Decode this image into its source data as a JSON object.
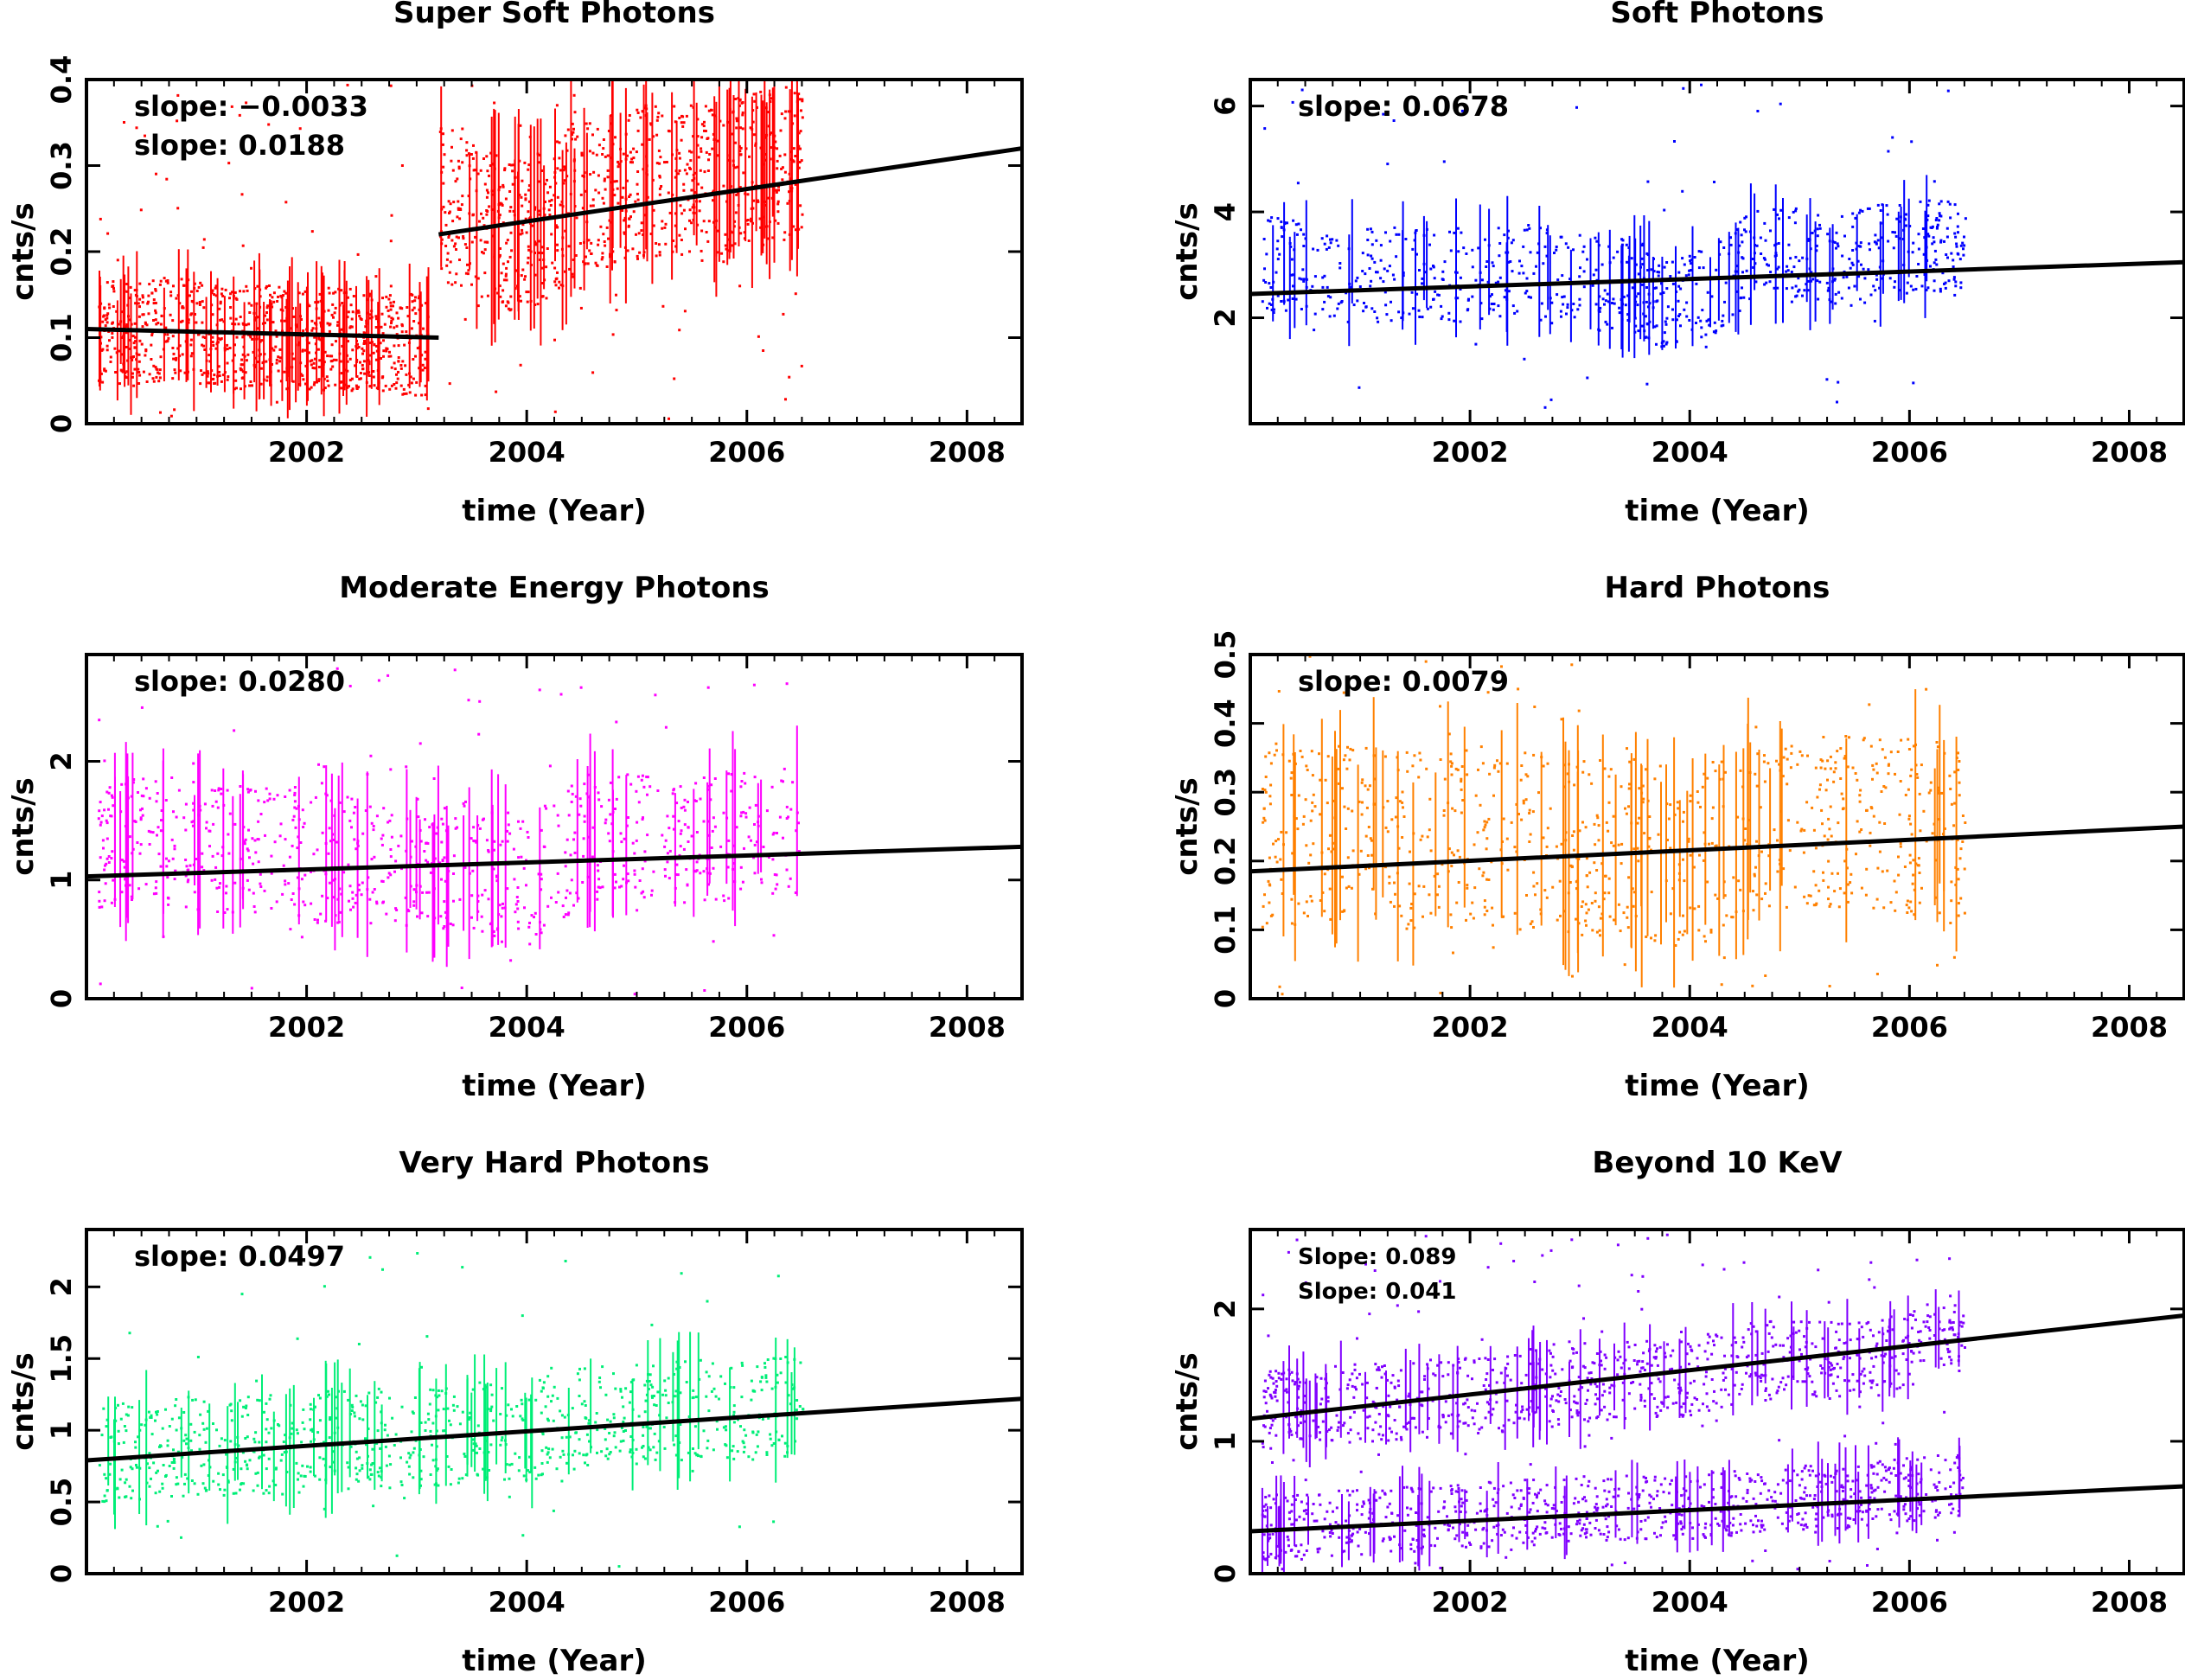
{
  "chart_data": [
    {
      "type": "scatter",
      "title": "Super Soft Photons",
      "xlabel": "time (Year)",
      "ylabel": "cnts/s",
      "xlim": [
        2000.0,
        2008.5
      ],
      "ylim": [
        0,
        0.4
      ],
      "xticks": [
        2002,
        2004,
        2006,
        2008
      ],
      "xtick_labels": [
        "2002",
        "2004",
        "2006",
        "2008"
      ],
      "yticks": [
        0,
        0.1,
        0.2,
        0.3,
        0.4
      ],
      "ytick_labels": [
        "0",
        "0.1",
        "0.2",
        "0.3",
        "0.4"
      ],
      "color": "#ff0000",
      "annotations": [
        "slope:  −0.0033",
        "slope:  0.0188"
      ],
      "series": [
        {
          "x": [
            2000.1,
            2000.4,
            2000.7,
            2001.0,
            2001.3,
            2001.6,
            2001.9,
            2002.2,
            2002.5,
            2002.8,
            2003.1
          ],
          "y": [
            0.11,
            0.105,
            0.112,
            0.108,
            0.1,
            0.103,
            0.099,
            0.101,
            0.097,
            0.095,
            0.094
          ],
          "spread": 0.06
        },
        {
          "x": [
            2003.2,
            2003.5,
            2003.8,
            2004.1,
            2004.4,
            2004.7,
            2005.0,
            2005.3,
            2005.6,
            2005.9,
            2006.2,
            2006.5
          ],
          "y": [
            0.26,
            0.24,
            0.22,
            0.23,
            0.26,
            0.27,
            0.28,
            0.29,
            0.28,
            0.29,
            0.3,
            0.31
          ],
          "spread": 0.09
        }
      ],
      "fit_lines": [
        {
          "x": [
            2000.0,
            2003.2
          ],
          "y": [
            0.11,
            0.1
          ]
        },
        {
          "x": [
            2003.2,
            2008.5
          ],
          "y": [
            0.22,
            0.32
          ]
        }
      ]
    },
    {
      "type": "scatter",
      "title": "Soft Photons",
      "xlabel": "time (Year)",
      "ylabel": "cnts/s",
      "xlim": [
        2000.0,
        2008.5
      ],
      "ylim": [
        0,
        6.5
      ],
      "xticks": [
        2002,
        2004,
        2006,
        2008
      ],
      "xtick_labels": [
        "2002",
        "2004",
        "2006",
        "2008"
      ],
      "yticks": [
        2,
        4,
        6
      ],
      "ytick_labels": [
        "2",
        "4",
        "6"
      ],
      "color": "#0000ff",
      "annotations": [
        "slope:  0.0678"
      ],
      "series": [
        {
          "x": [
            2000.1,
            2000.5,
            2001.0,
            2001.5,
            2002.0,
            2002.5,
            2003.0,
            2003.5,
            2003.8,
            2004.2,
            2004.6,
            2005.0,
            2005.4,
            2005.8,
            2006.2,
            2006.5
          ],
          "y": [
            3.1,
            2.9,
            2.8,
            2.9,
            2.8,
            2.9,
            2.7,
            2.6,
            2.3,
            2.6,
            3.3,
            3.2,
            3.1,
            3.3,
            3.4,
            3.2
          ],
          "spread": 0.9
        }
      ],
      "fit_lines": [
        {
          "x": [
            2000.0,
            2008.5
          ],
          "y": [
            2.45,
            3.05
          ]
        }
      ]
    },
    {
      "type": "scatter",
      "title": "Moderate Energy Photons",
      "xlabel": "time (Year)",
      "ylabel": "cnts/s",
      "xlim": [
        2000.0,
        2008.5
      ],
      "ylim": [
        0,
        2.9
      ],
      "xticks": [
        2002,
        2004,
        2006,
        2008
      ],
      "xtick_labels": [
        "2002",
        "2004",
        "2006",
        "2008"
      ],
      "yticks": [
        0,
        1,
        2
      ],
      "ytick_labels": [
        "0",
        "1",
        "2"
      ],
      "color": "#ff00ff",
      "annotations": [
        "slope:  0.0280"
      ],
      "series": [
        {
          "x": [
            2000.1,
            2000.5,
            2001.0,
            2001.5,
            2002.0,
            2002.5,
            2003.0,
            2003.5,
            2004.0,
            2004.5,
            2005.0,
            2005.5,
            2006.0,
            2006.5
          ],
          "y": [
            1.3,
            1.35,
            1.3,
            1.25,
            1.2,
            1.2,
            1.15,
            1.1,
            1.0,
            1.35,
            1.4,
            1.35,
            1.4,
            1.45
          ],
          "spread": 0.55
        }
      ],
      "fit_lines": [
        {
          "x": [
            2000.0,
            2008.5
          ],
          "y": [
            1.03,
            1.28
          ]
        }
      ]
    },
    {
      "type": "scatter",
      "title": "Hard Photons",
      "xlabel": "time (Year)",
      "ylabel": "cnts/s",
      "xlim": [
        2000.0,
        2008.5
      ],
      "ylim": [
        0,
        0.5
      ],
      "xticks": [
        2002,
        2004,
        2006,
        2008
      ],
      "xtick_labels": [
        "2002",
        "2004",
        "2006",
        "2008"
      ],
      "yticks": [
        0,
        0.1,
        0.2,
        0.3,
        0.4,
        0.5
      ],
      "ytick_labels": [
        "0",
        "0.1",
        "0.2",
        "0.3",
        "0.4",
        "0.5"
      ],
      "color": "#ff8000",
      "annotations": [
        "slope:  0.0079"
      ],
      "series": [
        {
          "x": [
            2000.1,
            2000.5,
            2001.0,
            2001.5,
            2002.0,
            2002.5,
            2003.0,
            2003.5,
            2004.0,
            2004.5,
            2005.0,
            2005.5,
            2006.0,
            2006.5
          ],
          "y": [
            0.23,
            0.24,
            0.24,
            0.23,
            0.24,
            0.23,
            0.22,
            0.22,
            0.2,
            0.25,
            0.26,
            0.26,
            0.25,
            0.25
          ],
          "spread": 0.13
        }
      ],
      "fit_lines": [
        {
          "x": [
            2000.0,
            2008.5
          ],
          "y": [
            0.185,
            0.25
          ]
        }
      ]
    },
    {
      "type": "scatter",
      "title": "Very Hard  Photons",
      "xlabel": "time (Year)",
      "ylabel": "cnts/s",
      "xlim": [
        2000.0,
        2008.5
      ],
      "ylim": [
        0,
        2.4
      ],
      "xticks": [
        2002,
        2004,
        2006,
        2008
      ],
      "xtick_labels": [
        "2002",
        "2004",
        "2006",
        "2008"
      ],
      "yticks": [
        0,
        0.5,
        1,
        1.5,
        2
      ],
      "ytick_labels": [
        "0",
        "0.5",
        "1",
        "1.5",
        "2"
      ],
      "color": "#00ee77",
      "annotations": [
        "slope:  0.0497"
      ],
      "series": [
        {
          "x": [
            2000.1,
            2000.5,
            2001.0,
            2001.5,
            2002.0,
            2002.5,
            2003.0,
            2003.5,
            2004.0,
            2004.5,
            2005.0,
            2005.5,
            2006.0,
            2006.5
          ],
          "y": [
            0.85,
            0.88,
            0.9,
            0.9,
            0.93,
            0.95,
            0.95,
            1.0,
            1.0,
            1.1,
            1.12,
            1.15,
            1.15,
            1.18
          ],
          "spread": 0.35
        }
      ],
      "fit_lines": [
        {
          "x": [
            2000.0,
            2008.5
          ],
          "y": [
            0.79,
            1.22
          ]
        }
      ]
    },
    {
      "type": "scatter",
      "title": "Beyond 10 KeV",
      "xlabel": "time (Year)",
      "ylabel": "cnts/s",
      "xlim": [
        2000.0,
        2008.5
      ],
      "ylim": [
        0,
        2.6
      ],
      "xticks": [
        2002,
        2004,
        2006,
        2008
      ],
      "xtick_labels": [
        "2002",
        "2004",
        "2006",
        "2008"
      ],
      "yticks": [
        0,
        1,
        2
      ],
      "ytick_labels": [
        "0",
        "1",
        "2"
      ],
      "color": "#8000ff",
      "annotations": [
        "Slope: 0.089",
        "Slope: 0.041"
      ],
      "series": [
        {
          "x": [
            2000.1,
            2000.5,
            2001.0,
            2001.5,
            2002.0,
            2002.5,
            2003.0,
            2003.5,
            2004.0,
            2004.5,
            2005.0,
            2005.5,
            2006.0,
            2006.5
          ],
          "y": [
            1.25,
            1.25,
            1.3,
            1.32,
            1.35,
            1.4,
            1.42,
            1.48,
            1.5,
            1.6,
            1.65,
            1.6,
            1.7,
            1.85
          ],
          "spread": 0.3
        },
        {
          "x": [
            2000.1,
            2000.5,
            2001.0,
            2001.5,
            2002.0,
            2002.5,
            2003.0,
            2003.5,
            2004.0,
            2004.5,
            2005.0,
            2005.5,
            2006.0,
            2006.5
          ],
          "y": [
            0.35,
            0.37,
            0.4,
            0.42,
            0.45,
            0.47,
            0.5,
            0.5,
            0.52,
            0.55,
            0.6,
            0.6,
            0.65,
            0.7
          ],
          "spread": 0.25
        }
      ],
      "fit_lines": [
        {
          "x": [
            2000.0,
            2008.5
          ],
          "y": [
            1.17,
            1.95
          ]
        },
        {
          "x": [
            2000.0,
            2008.5
          ],
          "y": [
            0.32,
            0.66
          ]
        }
      ]
    }
  ]
}
